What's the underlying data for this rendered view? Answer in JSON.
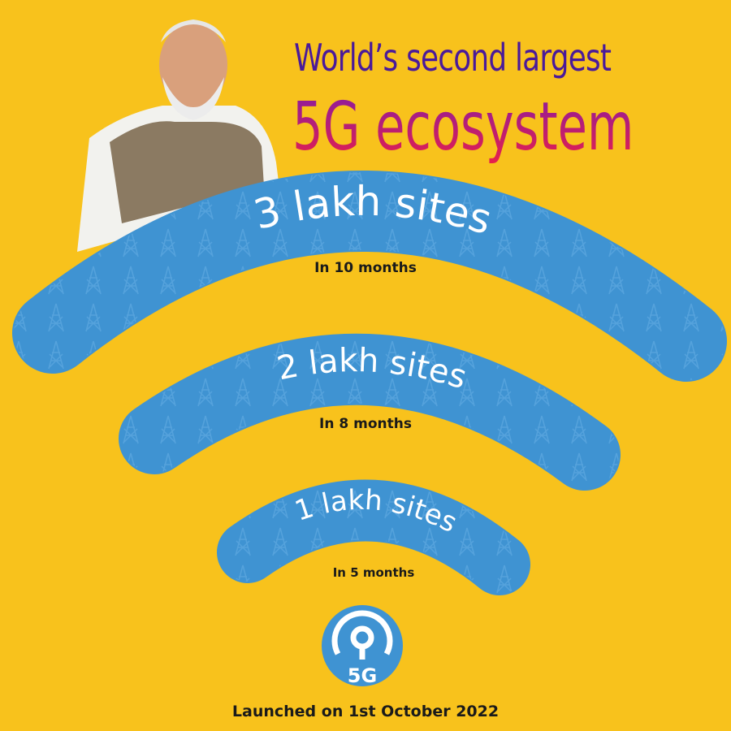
{
  "headline": {
    "line1": "World’s second largest",
    "line2": "5G ecosystem"
  },
  "arcs": [
    {
      "label": "3 lakh sites",
      "caption": "In 10 months"
    },
    {
      "label": "2 lakh sites",
      "caption": "In 8 months"
    },
    {
      "label": "1 lakh sites",
      "caption": "In 5 months"
    }
  ],
  "badge": {
    "icon": "broadcast-signal-icon",
    "label": "5G"
  },
  "footer": "Launched on 1st October 2022",
  "colors": {
    "background": "#f8c21c",
    "arc": "#3f93d2",
    "title_purple": "#4a1a9a",
    "title_red": "#e8204a"
  }
}
